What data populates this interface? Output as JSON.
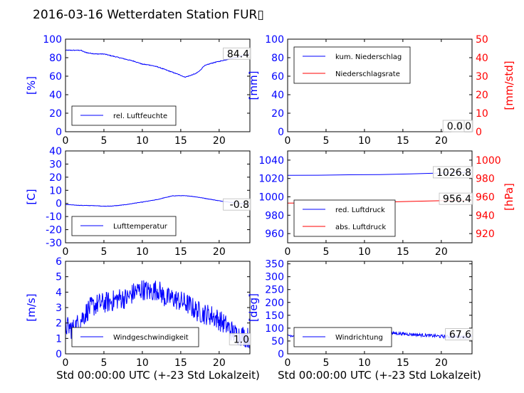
{
  "title": "2016-03-16 Wetterdaten Station FUR▯",
  "xlabel": "Std 00:00:00 UTC (+-23 Std Lokalzeit)",
  "colors": {
    "left_axis": "#0000ff",
    "right_axis": "#ff0000",
    "line_blue": "#0000ff",
    "line_red": "#ff0000",
    "line_light": "#7777ff"
  },
  "chart_data": [
    {
      "id": "humidity",
      "type": "line",
      "ylabel": "[%]",
      "xlim": [
        0,
        24
      ],
      "xticks": [
        0,
        5,
        10,
        15,
        20
      ],
      "ylim": [
        0,
        100
      ],
      "yticks": [
        0,
        20,
        40,
        60,
        80,
        100
      ],
      "current_value": "84.4",
      "legend": {
        "placement": "lower-left",
        "entries": [
          "rel. Luftfeuchte"
        ]
      },
      "series": [
        {
          "name": "rel. Luftfeuchte",
          "color": "#0000ff",
          "noise": 0.4,
          "x": [
            0,
            1,
            2,
            2.5,
            3,
            4,
            5,
            6,
            7,
            8,
            9,
            10,
            11,
            12,
            13,
            14,
            15,
            15.5,
            16,
            17,
            17.5,
            18,
            19,
            20,
            21,
            22,
            23,
            24
          ],
          "y": [
            88,
            88,
            88,
            86,
            85,
            84,
            84,
            82,
            80,
            78,
            76,
            73,
            72,
            70,
            67,
            64,
            61,
            59,
            60,
            63,
            66,
            71,
            74,
            76,
            78,
            80,
            82,
            84.4
          ]
        }
      ]
    },
    {
      "id": "precipitation",
      "type": "line",
      "ylabel": "[mm]",
      "ylabel_right": "[mm/std]",
      "xlim": [
        0,
        24
      ],
      "xticks": [
        0,
        5,
        10,
        15,
        20
      ],
      "ylim": [
        0,
        100
      ],
      "yticks": [
        0,
        20,
        40,
        60,
        80,
        100
      ],
      "ylim_right": [
        0,
        50
      ],
      "yticks_right": [
        0,
        10,
        20,
        30,
        40,
        50
      ],
      "current_value": "0.0",
      "current_value_right": "0.0",
      "legend": {
        "placement": "upper-left",
        "entries": [
          "kum. Niederschlag",
          "Niederschlagsrate"
        ]
      },
      "series": [
        {
          "name": "kum. Niederschlag",
          "color": "#0000ff",
          "axis": "left",
          "x": [
            0,
            24
          ],
          "y": [
            0,
            0
          ]
        },
        {
          "name": "Niederschlagsrate",
          "color": "#ff0000",
          "axis": "right",
          "x": [
            0,
            24
          ],
          "y": [
            0,
            0
          ]
        }
      ]
    },
    {
      "id": "temperature",
      "type": "line",
      "ylabel": "[C]",
      "xlim": [
        0,
        24
      ],
      "xticks": [
        0,
        5,
        10,
        15,
        20
      ],
      "ylim": [
        -30,
        40
      ],
      "yticks": [
        -30,
        -20,
        -10,
        0,
        10,
        20,
        30,
        40
      ],
      "current_value": "-0.8",
      "legend": {
        "placement": "lower-left",
        "entries": [
          "Lufttemperatur"
        ]
      },
      "series": [
        {
          "name": "Lufttemperatur",
          "color": "#0000ff",
          "noise": 0.15,
          "x": [
            0,
            1,
            2,
            3,
            4,
            5,
            6,
            7,
            8,
            9,
            10,
            11,
            12,
            13,
            14,
            15,
            16,
            17,
            18,
            19,
            20,
            21,
            22,
            23,
            24
          ],
          "y": [
            -0.8,
            -1.2,
            -1.5,
            -1.6,
            -1.7,
            -2.2,
            -2.0,
            -1.5,
            -0.8,
            0.2,
            1.0,
            2.0,
            3.0,
            4.5,
            5.8,
            5.9,
            5.7,
            5.0,
            4.0,
            3.0,
            2.0,
            1.2,
            0.5,
            -0.3,
            -0.8
          ]
        }
      ]
    },
    {
      "id": "pressure",
      "type": "line",
      "ylabel_right": "[hPa]",
      "xlim": [
        0,
        24
      ],
      "xticks": [
        0,
        5,
        10,
        15,
        20
      ],
      "ylim": [
        950,
        1050
      ],
      "yticks": [
        960,
        980,
        1000,
        1020,
        1040
      ],
      "ylim_right": [
        910,
        1010
      ],
      "yticks_right": [
        920,
        940,
        960,
        980,
        1000
      ],
      "current_value": "1026.8",
      "current_value_right": "956.4",
      "legend": {
        "placement": "lower-left",
        "entries": [
          "red. Luftdruck",
          "abs. Luftdruck"
        ]
      },
      "series": [
        {
          "name": "red. Luftdruck",
          "color": "#0000ff",
          "axis": "left",
          "x": [
            0,
            4,
            8,
            12,
            16,
            20,
            24
          ],
          "y": [
            1023.4,
            1023.6,
            1024.0,
            1024.3,
            1025.0,
            1026.0,
            1026.8
          ]
        },
        {
          "name": "abs. Luftdruck",
          "color": "#ff0000",
          "axis": "right",
          "x": [
            0,
            4,
            8,
            12,
            16,
            20,
            24
          ],
          "y": [
            953.2,
            953.4,
            953.8,
            954.2,
            955.0,
            955.8,
            956.4
          ]
        }
      ]
    },
    {
      "id": "wind_speed",
      "type": "line",
      "ylabel": "[m/s]",
      "xlim": [
        0,
        24
      ],
      "xticks": [
        0,
        5,
        10,
        15,
        20
      ],
      "ylim": [
        0,
        6
      ],
      "yticks": [
        0,
        1,
        2,
        3,
        4,
        5,
        6
      ],
      "current_value": "1.0",
      "legend": {
        "placement": "lower-left",
        "entries": [
          "Windgeschwindigkeit"
        ]
      },
      "series": [
        {
          "name": "Windgeschwindigkeit",
          "color": "#0000ff",
          "noise": 0.7,
          "x": [
            0,
            1,
            2,
            3,
            4,
            5,
            6,
            7,
            8,
            9,
            10,
            11,
            12,
            13,
            14,
            15,
            16,
            17,
            18,
            19,
            20,
            21,
            22,
            23,
            24
          ],
          "y": [
            1.8,
            1.6,
            2.2,
            2.9,
            3.2,
            3.3,
            3.4,
            3.6,
            3.6,
            4.0,
            4.2,
            4.0,
            4.2,
            3.6,
            3.6,
            3.4,
            3.2,
            2.8,
            2.6,
            2.5,
            2.2,
            1.8,
            1.3,
            1.2,
            1.0
          ]
        }
      ]
    },
    {
      "id": "wind_direction",
      "type": "line",
      "ylabel": "[deg]",
      "xlim": [
        0,
        24
      ],
      "xticks": [
        0,
        5,
        10,
        15,
        20
      ],
      "ylim": [
        0,
        360
      ],
      "yticks": [
        0,
        50,
        100,
        150,
        200,
        250,
        300,
        350
      ],
      "current_value": "67.6",
      "legend": {
        "placement": "lower-left",
        "entries": [
          "Windrichtung"
        ]
      },
      "series": [
        {
          "name": "Windrichtung",
          "color": "#0000ff",
          "noise": 6,
          "x": [
            0,
            2,
            4,
            6,
            8,
            10,
            12,
            14,
            16,
            18,
            20,
            22,
            24
          ],
          "y": [
            72,
            70,
            68,
            70,
            72,
            74,
            78,
            80,
            76,
            72,
            68,
            66,
            67.6
          ]
        }
      ]
    }
  ]
}
